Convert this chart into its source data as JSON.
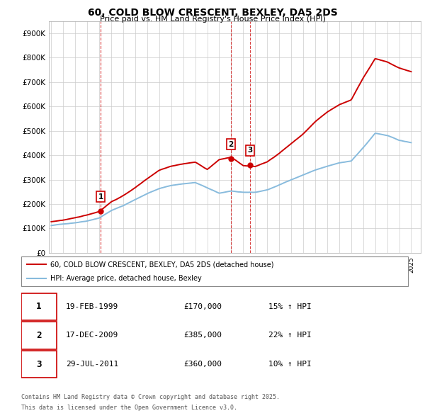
{
  "title": "60, COLD BLOW CRESCENT, BEXLEY, DA5 2DS",
  "subtitle": "Price paid vs. HM Land Registry's House Price Index (HPI)",
  "ylim": [
    0,
    950000
  ],
  "yticks": [
    0,
    100000,
    200000,
    300000,
    400000,
    500000,
    600000,
    700000,
    800000,
    900000
  ],
  "ytick_labels": [
    "£0",
    "£100K",
    "£200K",
    "£300K",
    "£400K",
    "£500K",
    "£600K",
    "£700K",
    "£800K",
    "£900K"
  ],
  "xlim_start": 1994.8,
  "xlim_end": 2025.8,
  "line_color_red": "#cc0000",
  "line_color_blue": "#88bbdd",
  "sales": [
    {
      "year": 1999.12,
      "price": 170000,
      "label": "1"
    },
    {
      "year": 2009.96,
      "price": 385000,
      "label": "2"
    },
    {
      "year": 2011.57,
      "price": 360000,
      "label": "3"
    }
  ],
  "legend_red": "60, COLD BLOW CRESCENT, BEXLEY, DA5 2DS (detached house)",
  "legend_blue": "HPI: Average price, detached house, Bexley",
  "footer1": "Contains HM Land Registry data © Crown copyright and database right 2025.",
  "footer2": "This data is licensed under the Open Government Licence v3.0.",
  "table_rows": [
    {
      "num": "1",
      "date": "19-FEB-1999",
      "price": "£170,000",
      "hpi": "15% ↑ HPI"
    },
    {
      "num": "2",
      "date": "17-DEC-2009",
      "price": "£385,000",
      "hpi": "22% ↑ HPI"
    },
    {
      "num": "3",
      "date": "29-JUL-2011",
      "price": "£360,000",
      "hpi": "10% ↑ HPI"
    }
  ],
  "background_color": "#ffffff",
  "grid_color": "#cccccc",
  "hpi_waypoints_x": [
    1995,
    1996,
    1997,
    1998,
    1999,
    2000,
    2001,
    2002,
    2003,
    2004,
    2005,
    2006,
    2007,
    2008,
    2009,
    2010,
    2011,
    2012,
    2013,
    2014,
    2015,
    2016,
    2017,
    2018,
    2019,
    2020,
    2021,
    2022,
    2023,
    2024,
    2025
  ],
  "hpi_blue_y": [
    112000,
    118000,
    124000,
    132000,
    145000,
    175000,
    195000,
    220000,
    245000,
    265000,
    278000,
    285000,
    290000,
    268000,
    245000,
    255000,
    248000,
    248000,
    258000,
    278000,
    300000,
    320000,
    340000,
    355000,
    368000,
    375000,
    430000,
    490000,
    480000,
    460000,
    450000
  ],
  "hpi_red_y": [
    128000,
    135000,
    143000,
    155000,
    170000,
    210000,
    235000,
    268000,
    305000,
    340000,
    358000,
    368000,
    375000,
    345000,
    385000,
    395000,
    360000,
    355000,
    375000,
    410000,
    450000,
    490000,
    540000,
    580000,
    610000,
    630000,
    720000,
    800000,
    785000,
    760000,
    745000
  ]
}
